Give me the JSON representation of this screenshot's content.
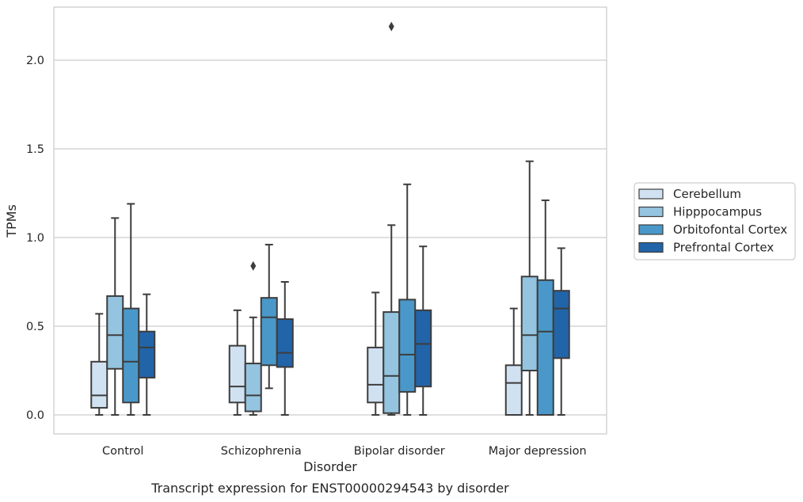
{
  "chart_data": {
    "type": "boxplot",
    "title": "Transcript expression for ENST00000294543 by disorder",
    "xlabel": "Disorder",
    "ylabel": "TPMs",
    "ylim": [
      -0.1,
      2.3
    ],
    "yticks": [
      0.0,
      0.5,
      1.0,
      1.5,
      2.0
    ],
    "ytick_labels": [
      "0.0",
      "0.5",
      "1.0",
      "1.5",
      "2.0"
    ],
    "grid": "horizontal",
    "legend_position": "right",
    "categories": [
      "Control",
      "Schizophrenia",
      "Bipolar disorder",
      "Major depression"
    ],
    "series": [
      {
        "name": "Cerebellum",
        "color": "#d0e1f2",
        "boxes": [
          {
            "whislo": 0.0,
            "q1": 0.04,
            "med": 0.11,
            "q3": 0.3,
            "whishi": 0.57,
            "fliers": []
          },
          {
            "whislo": 0.0,
            "q1": 0.07,
            "med": 0.16,
            "q3": 0.39,
            "whishi": 0.59,
            "fliers": []
          },
          {
            "whislo": 0.0,
            "q1": 0.07,
            "med": 0.17,
            "q3": 0.38,
            "whishi": 0.69,
            "fliers": []
          },
          {
            "whislo": 0.0,
            "q1": 0.0,
            "med": 0.18,
            "q3": 0.28,
            "whishi": 0.6,
            "fliers": []
          }
        ]
      },
      {
        "name": "Hipppocampus",
        "color": "#94c4df",
        "boxes": [
          {
            "whislo": 0.0,
            "q1": 0.26,
            "med": 0.45,
            "q3": 0.67,
            "whishi": 1.11,
            "fliers": []
          },
          {
            "whislo": 0.0,
            "q1": 0.02,
            "med": 0.11,
            "q3": 0.29,
            "whishi": 0.55,
            "fliers": [
              0.84
            ]
          },
          {
            "whislo": 0.0,
            "q1": 0.01,
            "med": 0.22,
            "q3": 0.58,
            "whishi": 1.07,
            "fliers": [
              2.19
            ]
          },
          {
            "whislo": 0.0,
            "q1": 0.25,
            "med": 0.45,
            "q3": 0.78,
            "whishi": 1.43,
            "fliers": []
          }
        ]
      },
      {
        "name": "Orbitofontal Cortex",
        "color": "#4a98c9",
        "boxes": [
          {
            "whislo": 0.0,
            "q1": 0.07,
            "med": 0.3,
            "q3": 0.6,
            "whishi": 1.19,
            "fliers": []
          },
          {
            "whislo": 0.15,
            "q1": 0.28,
            "med": 0.55,
            "q3": 0.66,
            "whishi": 0.96,
            "fliers": []
          },
          {
            "whislo": 0.0,
            "q1": 0.13,
            "med": 0.34,
            "q3": 0.65,
            "whishi": 1.3,
            "fliers": []
          },
          {
            "whislo": 0.0,
            "q1": 0.0,
            "med": 0.47,
            "q3": 0.76,
            "whishi": 1.21,
            "fliers": []
          }
        ]
      },
      {
        "name": "Prefrontal Cortex",
        "color": "#2264a8",
        "boxes": [
          {
            "whislo": 0.0,
            "q1": 0.21,
            "med": 0.38,
            "q3": 0.47,
            "whishi": 0.68,
            "fliers": []
          },
          {
            "whislo": 0.0,
            "q1": 0.27,
            "med": 0.35,
            "q3": 0.54,
            "whishi": 0.75,
            "fliers": []
          },
          {
            "whislo": 0.0,
            "q1": 0.16,
            "med": 0.4,
            "q3": 0.59,
            "whishi": 0.95,
            "fliers": []
          },
          {
            "whislo": 0.0,
            "q1": 0.32,
            "med": 0.6,
            "q3": 0.7,
            "whishi": 0.94,
            "fliers": []
          }
        ]
      }
    ]
  }
}
